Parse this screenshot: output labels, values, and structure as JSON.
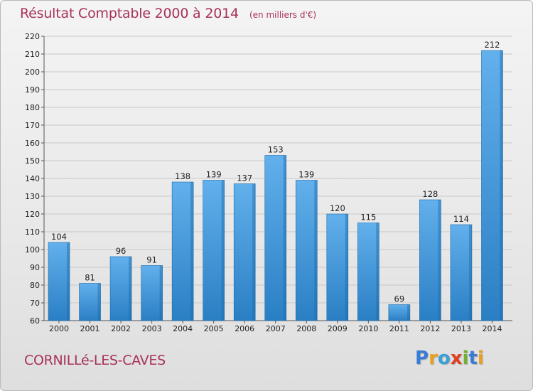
{
  "header": {
    "title": "Résultat Comptable 2000 à 2014",
    "subtitle": "(en milliers d'€)"
  },
  "footer": {
    "location": "CORNILLé-LES-CAVES",
    "brand": "Proxiti",
    "brand_letters": [
      {
        "ch": "P",
        "color": "#3a7bd5"
      },
      {
        "ch": "r",
        "color": "#e8a020"
      },
      {
        "ch": "o",
        "color": "#3aa0d8"
      },
      {
        "ch": "x",
        "color": "#e04020"
      },
      {
        "ch": "i",
        "color": "#70b030"
      },
      {
        "ch": "t",
        "color": "#3a7bd5"
      },
      {
        "ch": "i",
        "color": "#e8a020"
      }
    ]
  },
  "colors": {
    "bar_top": "#62b0ec",
    "bar_bottom": "#2a7fc4",
    "bar_side": "#1d6aa8",
    "grid": "#c8c8c8",
    "title": "#a8325a"
  },
  "chart_data": {
    "type": "bar",
    "title": "Résultat Comptable 2000 à 2014",
    "subtitle": "(en milliers d'€)",
    "categories": [
      "2000",
      "2001",
      "2002",
      "2003",
      "2004",
      "2005",
      "2006",
      "2007",
      "2008",
      "2009",
      "2010",
      "2011",
      "2012",
      "2013",
      "2014"
    ],
    "values": [
      104,
      81,
      96,
      91,
      138,
      139,
      137,
      153,
      139,
      120,
      115,
      69,
      128,
      114,
      212
    ],
    "ylim": [
      60,
      220
    ],
    "yticks": [
      60,
      70,
      80,
      90,
      100,
      110,
      120,
      130,
      140,
      150,
      160,
      170,
      180,
      190,
      200,
      210,
      220
    ],
    "xlabel": "",
    "ylabel": "",
    "grid": true,
    "legend": "none"
  }
}
